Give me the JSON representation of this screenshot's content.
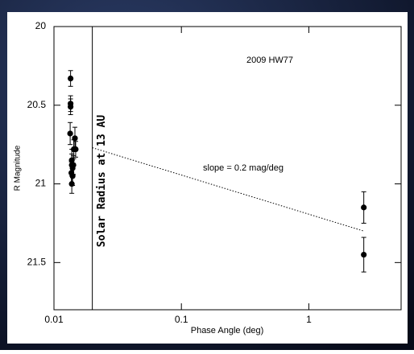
{
  "chart_data": {
    "type": "scatter",
    "title": "2009 HW77",
    "x_label": "Phase Angle (deg)",
    "y_label": "R Magnitude",
    "x": [
      0.0135,
      0.0135,
      0.0135,
      0.0134,
      0.0146,
      0.0143,
      0.0148,
      0.0138,
      0.0138,
      0.014,
      0.0137,
      0.014,
      0.0142,
      0.0138,
      2.7,
      2.7
    ],
    "values": [
      20.33,
      20.49,
      20.51,
      20.68,
      20.71,
      20.78,
      20.78,
      20.85,
      20.88,
      20.9,
      20.93,
      20.95,
      20.88,
      21.0,
      21.15,
      21.45
    ],
    "errors": [
      0.05,
      0.05,
      0.05,
      0.07,
      0.07,
      0.06,
      0.05,
      0.07,
      0.07,
      0.06,
      0.07,
      0.06,
      0.06,
      0.06,
      0.1,
      0.11
    ],
    "color": "#000000",
    "xlog": true,
    "xlim": [
      0.01,
      5.3
    ],
    "ylim": [
      20,
      21.8
    ],
    "yinverted": true,
    "xticks": [
      0.01,
      0.1,
      1
    ],
    "yticks": [
      20,
      20.5,
      21,
      21.5
    ],
    "fit_line": {
      "x": [
        0.02,
        2.7
      ],
      "y": [
        20.77,
        21.3
      ],
      "label": "slope = 0.2 mag/deg"
    },
    "vline": {
      "x": 0.02,
      "label": "Solar Radius at 13 AU"
    }
  }
}
